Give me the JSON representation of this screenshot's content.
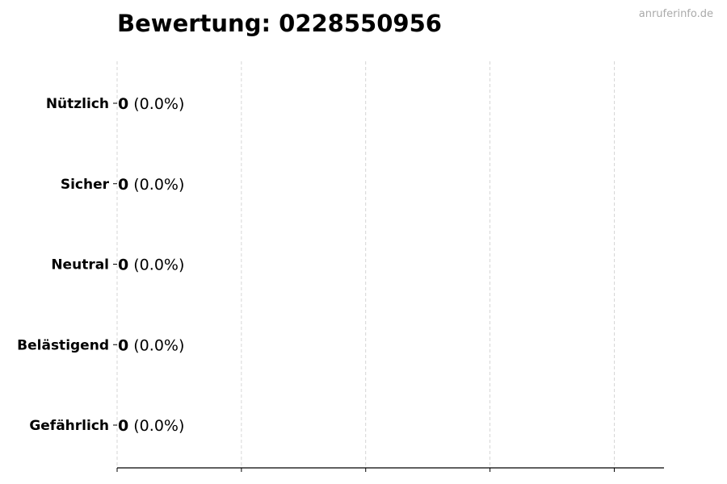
{
  "chart_data": {
    "type": "bar",
    "orientation": "horizontal",
    "title": "Bewertung: 0228550956",
    "watermark": "anruferinfo.de",
    "categories": [
      "Nützlich",
      "Sicher",
      "Neutral",
      "Belästigend",
      "Gefährlich"
    ],
    "values": [
      0,
      0,
      0,
      0,
      0
    ],
    "percent_labels": [
      "(0.0%)",
      "(0.0%)",
      "(0.0%)",
      "(0.0%)",
      "(0.0%)"
    ],
    "xlim": [
      0,
      4.4
    ],
    "xticks": [
      0,
      1,
      2,
      3,
      4
    ],
    "xtick_labels_shown": false,
    "grid": "x, dashed",
    "bar_edge_color": "#000000",
    "grid_color": "#cccccc"
  }
}
